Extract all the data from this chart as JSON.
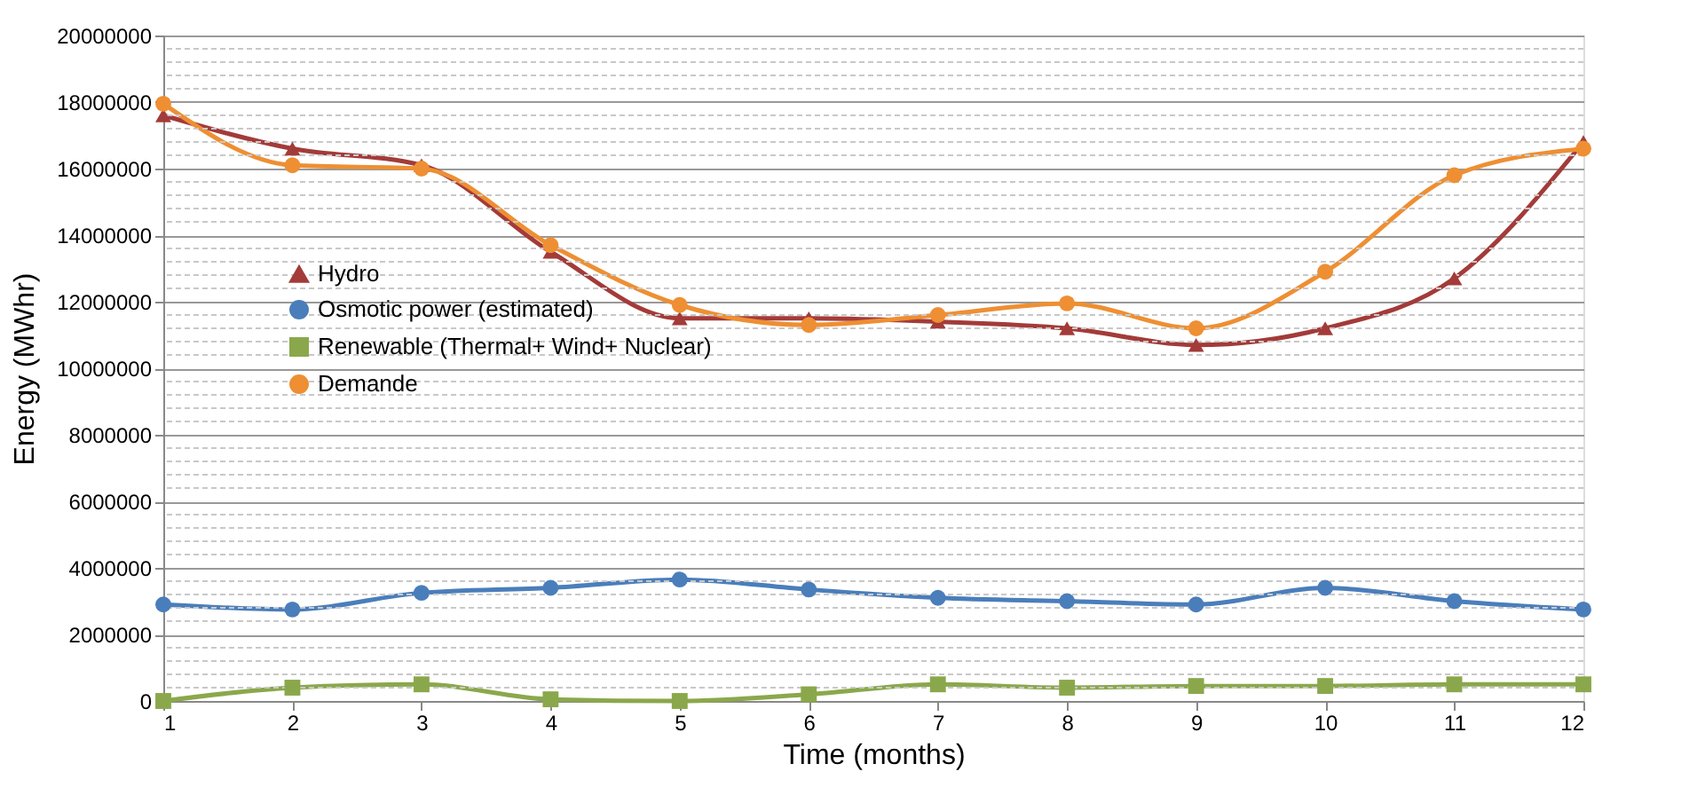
{
  "chart_data": {
    "type": "line",
    "xlabel": "Time (months)",
    "ylabel": "Energy (MWhr)",
    "x": [
      1,
      2,
      3,
      4,
      5,
      6,
      7,
      8,
      9,
      10,
      11,
      12
    ],
    "xlim": [
      1,
      12
    ],
    "xticks": [
      1,
      2,
      3,
      4,
      5,
      6,
      7,
      8,
      9,
      10,
      11,
      12
    ],
    "ylim": [
      0,
      20000000
    ],
    "yticks": [
      0,
      {
        "value": 400000,
        "label": null
      },
      {
        "value": 800000,
        "label": null
      },
      {
        "value": 1200000,
        "label": null
      },
      {
        "value": 1600000,
        "label": null
      },
      2000000,
      {
        "value": 2400000,
        "label": null
      },
      {
        "value": 2800000,
        "label": null
      },
      {
        "value": 3200000,
        "label": null
      },
      {
        "value": 3600000,
        "label": null
      },
      4000000,
      {
        "value": 4400000,
        "label": null
      },
      {
        "value": 4800000,
        "label": null
      },
      {
        "value": 5200000,
        "label": null
      },
      {
        "value": 5600000,
        "label": null
      },
      6000000,
      {
        "value": 6400000,
        "label": null
      },
      {
        "value": 6800000,
        "label": null
      },
      {
        "value": 7200000,
        "label": null
      },
      {
        "value": 7600000,
        "label": null
      },
      8000000,
      {
        "value": 8400000,
        "label": null
      },
      {
        "value": 8800000,
        "label": null
      },
      {
        "value": 9200000,
        "label": null
      },
      {
        "value": 9600000,
        "label": null
      },
      10000000,
      {
        "value": 10400000,
        "label": null
      },
      {
        "value": 10800000,
        "label": null
      },
      {
        "value": 11200000,
        "label": null
      },
      {
        "value": 11600000,
        "label": null
      },
      12000000,
      {
        "value": 12400000,
        "label": null
      },
      {
        "value": 12800000,
        "label": null
      },
      {
        "value": 13200000,
        "label": null
      },
      {
        "value": 13600000,
        "label": null
      },
      14000000,
      {
        "value": 14400000,
        "label": null
      },
      {
        "value": 14800000,
        "label": null
      },
      {
        "value": 15200000,
        "label": null
      },
      {
        "value": 15600000,
        "label": null
      },
      16000000,
      {
        "value": 16400000,
        "label": null
      },
      {
        "value": 16800000,
        "label": null
      },
      {
        "value": 17200000,
        "label": null
      },
      {
        "value": 17600000,
        "label": null
      },
      18000000,
      {
        "value": 18400000,
        "label": null
      },
      {
        "value": 18800000,
        "label": null
      },
      {
        "value": 19200000,
        "label": null
      },
      {
        "value": 19600000,
        "label": null
      },
      20000000
    ],
    "grid": "y",
    "legend": "left",
    "line_style": "solid",
    "series": [
      {
        "name": "Hydro",
        "color": "#a33b39",
        "marker": "triangle",
        "values": [
          17600000,
          16600000,
          16100000,
          13500000,
          11500000,
          11500000,
          11400000,
          11200000,
          10700000,
          11200000,
          12700000,
          16800000
        ]
      },
      {
        "name": "Osmotic power (estimated)",
        "color": "#4a7ebb",
        "marker": "circle",
        "values": [
          2900000,
          2750000,
          3250000,
          3400000,
          3650000,
          3350000,
          3100000,
          3000000,
          2900000,
          3400000,
          3000000,
          2750000
        ]
      },
      {
        "name": "Renewable (Thermal+ Wind+ Nuclear)",
        "color": "#8aa84b",
        "marker": "square",
        "values": [
          0,
          400000,
          500000,
          50000,
          0,
          200000,
          500000,
          400000,
          450000,
          450000,
          500000,
          500000
        ]
      },
      {
        "name": "Demande",
        "color": "#ee8f33",
        "marker": "circle",
        "values": [
          17950000,
          16100000,
          16000000,
          13700000,
          11900000,
          11300000,
          11600000,
          11950000,
          11200000,
          12900000,
          15800000,
          16600000
        ]
      }
    ]
  }
}
